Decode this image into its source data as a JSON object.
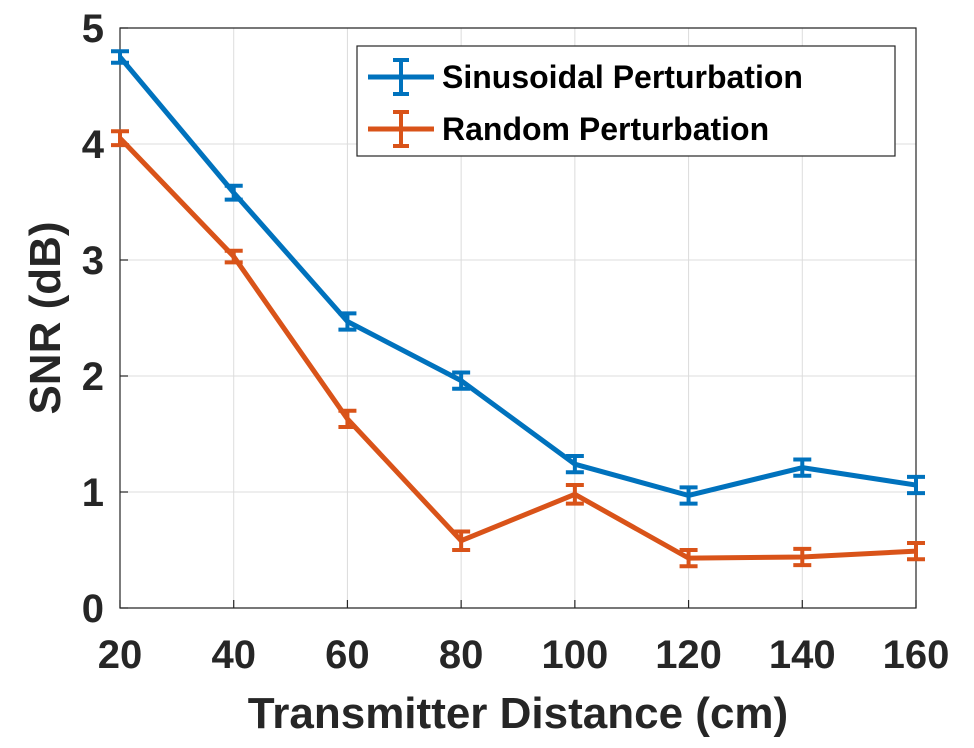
{
  "chart_data": {
    "type": "line",
    "title": "",
    "xlabel": "Transmitter Distance (cm)",
    "ylabel": "SNR (dB)",
    "x": [
      20,
      40,
      60,
      80,
      100,
      120,
      140,
      160
    ],
    "xlim": [
      20,
      160
    ],
    "ylim": [
      0,
      5
    ],
    "xticks": [
      "20",
      "40",
      "60",
      "80",
      "100",
      "120",
      "140",
      "160"
    ],
    "yticks": [
      "0",
      "1",
      "2",
      "3",
      "4",
      "5"
    ],
    "grid": true,
    "legend_position": "top-right",
    "error_bars": true,
    "series": [
      {
        "name": "Sinusoidal Perturbation",
        "color": "#0072BD",
        "values": [
          4.75,
          3.58,
          2.47,
          1.96,
          1.24,
          0.97,
          1.21,
          1.06
        ],
        "errors": [
          0.05,
          0.06,
          0.07,
          0.07,
          0.07,
          0.07,
          0.07,
          0.07
        ]
      },
      {
        "name": "Random Perturbation",
        "color": "#D95319",
        "values": [
          4.05,
          3.03,
          1.63,
          0.58,
          0.98,
          0.43,
          0.44,
          0.49
        ],
        "errors": [
          0.06,
          0.05,
          0.07,
          0.08,
          0.08,
          0.07,
          0.07,
          0.07
        ]
      }
    ]
  }
}
